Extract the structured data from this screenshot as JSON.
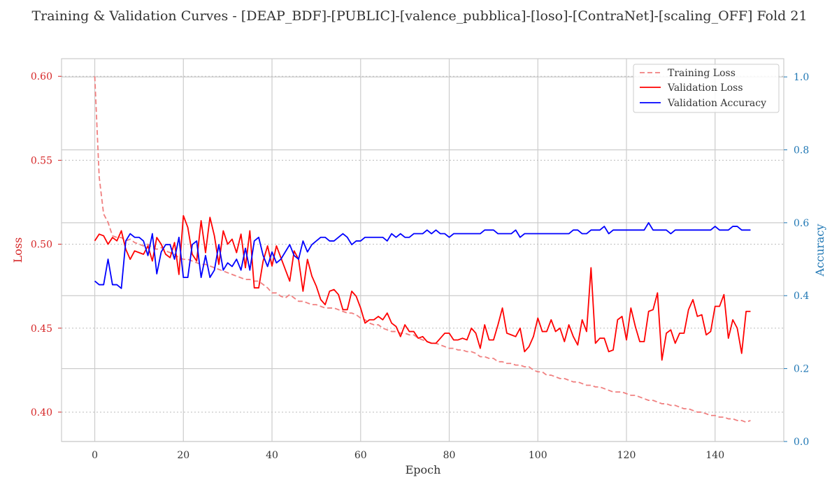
{
  "chart_data": {
    "type": "line",
    "title": "Training & Validation Curves - [DEAP_BDF]-[PUBLIC]-[valence_pubblica]-[loso]-[ContraNet]-[scaling_OFF] Fold 21",
    "xlabel": "Epoch",
    "ylabel_left": "Loss",
    "ylabel_right": "Accuracy",
    "xlim": [
      -7.5,
      155.5
    ],
    "ylim_left": [
      0.3825,
      0.6105
    ],
    "ylim_right": [
      0.0,
      1.05
    ],
    "x_ticks": [
      0,
      20,
      40,
      60,
      80,
      100,
      120,
      140
    ],
    "x_tick_labels": [
      "0",
      "20",
      "40",
      "60",
      "80",
      "100",
      "120",
      "140"
    ],
    "y_left_ticks": [
      0.4,
      0.45,
      0.5,
      0.55,
      0.6
    ],
    "y_left_tick_labels": [
      "0.40",
      "0.45",
      "0.50",
      "0.55",
      "0.60"
    ],
    "y_right_ticks": [
      0.0,
      0.2,
      0.4,
      0.6,
      0.8,
      1.0
    ],
    "y_right_tick_labels": [
      "0.0",
      "0.2",
      "0.4",
      "0.6",
      "0.8",
      "1.0"
    ],
    "grid": true,
    "legend_position": "upper right",
    "colors": {
      "training_loss": "#f08080",
      "validation_loss": "#ff0000",
      "validation_accuracy": "#0000ff",
      "left_axis": "#d62728",
      "right_axis": "#1f77b4",
      "grid": "#cccccc",
      "axes": "#cccccc"
    },
    "series": [
      {
        "name": "Training Loss",
        "axis": "left",
        "style": "dashed",
        "values": [
          0.6,
          0.54,
          0.518,
          0.513,
          0.505,
          0.504,
          0.504,
          0.502,
          0.503,
          0.501,
          0.5,
          0.499,
          0.5,
          0.498,
          0.497,
          0.498,
          0.496,
          0.495,
          0.494,
          0.492,
          0.491,
          0.491,
          0.49,
          0.489,
          0.488,
          0.488,
          0.487,
          0.486,
          0.485,
          0.484,
          0.483,
          0.482,
          0.481,
          0.48,
          0.479,
          0.479,
          0.478,
          0.478,
          0.476,
          0.474,
          0.471,
          0.471,
          0.469,
          0.468,
          0.47,
          0.468,
          0.466,
          0.466,
          0.465,
          0.464,
          0.464,
          0.463,
          0.462,
          0.462,
          0.462,
          0.461,
          0.46,
          0.459,
          0.459,
          0.458,
          0.456,
          0.455,
          0.453,
          0.452,
          0.452,
          0.45,
          0.449,
          0.448,
          0.448,
          0.447,
          0.447,
          0.446,
          0.446,
          0.444,
          0.443,
          0.442,
          0.441,
          0.441,
          0.44,
          0.439,
          0.438,
          0.438,
          0.437,
          0.437,
          0.436,
          0.436,
          0.435,
          0.433,
          0.433,
          0.432,
          0.432,
          0.43,
          0.43,
          0.429,
          0.429,
          0.428,
          0.428,
          0.427,
          0.427,
          0.425,
          0.424,
          0.424,
          0.422,
          0.422,
          0.421,
          0.42,
          0.42,
          0.419,
          0.418,
          0.418,
          0.417,
          0.416,
          0.416,
          0.415,
          0.415,
          0.414,
          0.413,
          0.412,
          0.412,
          0.412,
          0.411,
          0.41,
          0.41,
          0.409,
          0.408,
          0.407,
          0.407,
          0.406,
          0.405,
          0.405,
          0.404,
          0.404,
          0.403,
          0.402,
          0.402,
          0.401,
          0.4,
          0.4,
          0.399,
          0.398,
          0.398,
          0.397,
          0.397,
          0.396,
          0.396,
          0.395,
          0.395,
          0.394,
          0.395
        ]
      },
      {
        "name": "Validation Loss",
        "axis": "left",
        "style": "solid",
        "values": [
          0.502,
          0.506,
          0.505,
          0.5,
          0.504,
          0.502,
          0.508,
          0.497,
          0.491,
          0.496,
          0.495,
          0.494,
          0.499,
          0.49,
          0.504,
          0.5,
          0.494,
          0.492,
          0.501,
          0.482,
          0.517,
          0.51,
          0.494,
          0.49,
          0.514,
          0.495,
          0.516,
          0.505,
          0.488,
          0.508,
          0.5,
          0.503,
          0.495,
          0.506,
          0.486,
          0.508,
          0.474,
          0.474,
          0.49,
          0.499,
          0.487,
          0.499,
          0.492,
          0.485,
          0.478,
          0.496,
          0.491,
          0.472,
          0.491,
          0.481,
          0.475,
          0.467,
          0.464,
          0.472,
          0.473,
          0.47,
          0.461,
          0.461,
          0.472,
          0.469,
          0.462,
          0.453,
          0.455,
          0.455,
          0.457,
          0.455,
          0.459,
          0.453,
          0.451,
          0.445,
          0.452,
          0.448,
          0.448,
          0.444,
          0.445,
          0.442,
          0.441,
          0.441,
          0.444,
          0.447,
          0.447,
          0.443,
          0.443,
          0.444,
          0.443,
          0.45,
          0.447,
          0.438,
          0.452,
          0.443,
          0.443,
          0.452,
          0.462,
          0.447,
          0.446,
          0.445,
          0.45,
          0.436,
          0.439,
          0.445,
          0.456,
          0.448,
          0.448,
          0.455,
          0.448,
          0.45,
          0.442,
          0.452,
          0.445,
          0.44,
          0.455,
          0.448,
          0.486,
          0.441,
          0.444,
          0.444,
          0.436,
          0.437,
          0.455,
          0.457,
          0.443,
          0.462,
          0.451,
          0.442,
          0.442,
          0.46,
          0.461,
          0.471,
          0.431,
          0.447,
          0.449,
          0.441,
          0.447,
          0.447,
          0.461,
          0.467,
          0.457,
          0.458,
          0.446,
          0.448,
          0.463,
          0.463,
          0.47,
          0.444,
          0.455,
          0.45,
          0.435,
          0.46,
          0.46
        ]
      },
      {
        "name": "Validation Accuracy",
        "axis": "right",
        "style": "solid",
        "values": [
          0.44,
          0.43,
          0.43,
          0.5,
          0.43,
          0.43,
          0.42,
          0.55,
          0.57,
          0.56,
          0.56,
          0.55,
          0.51,
          0.57,
          0.46,
          0.52,
          0.54,
          0.54,
          0.5,
          0.56,
          0.45,
          0.45,
          0.54,
          0.55,
          0.45,
          0.51,
          0.45,
          0.47,
          0.54,
          0.47,
          0.49,
          0.48,
          0.5,
          0.47,
          0.53,
          0.47,
          0.55,
          0.56,
          0.51,
          0.48,
          0.52,
          0.49,
          0.5,
          0.52,
          0.54,
          0.51,
          0.5,
          0.55,
          0.52,
          0.54,
          0.55,
          0.56,
          0.56,
          0.55,
          0.55,
          0.56,
          0.57,
          0.56,
          0.54,
          0.55,
          0.55,
          0.56,
          0.56,
          0.56,
          0.56,
          0.56,
          0.55,
          0.57,
          0.56,
          0.57,
          0.56,
          0.56,
          0.57,
          0.57,
          0.57,
          0.58,
          0.57,
          0.58,
          0.57,
          0.57,
          0.56,
          0.57,
          0.57,
          0.57,
          0.57,
          0.57,
          0.57,
          0.57,
          0.58,
          0.58,
          0.58,
          0.57,
          0.57,
          0.57,
          0.57,
          0.58,
          0.56,
          0.57,
          0.57,
          0.57,
          0.57,
          0.57,
          0.57,
          0.57,
          0.57,
          0.57,
          0.57,
          0.57,
          0.58,
          0.58,
          0.57,
          0.57,
          0.58,
          0.58,
          0.58,
          0.59,
          0.57,
          0.58,
          0.58,
          0.58,
          0.58,
          0.58,
          0.58,
          0.58,
          0.58,
          0.6,
          0.58,
          0.58,
          0.58,
          0.58,
          0.57,
          0.58,
          0.58,
          0.58,
          0.58,
          0.58,
          0.58,
          0.58,
          0.58,
          0.58,
          0.59,
          0.58,
          0.58,
          0.58,
          0.59,
          0.59,
          0.58,
          0.58,
          0.58
        ]
      }
    ]
  }
}
